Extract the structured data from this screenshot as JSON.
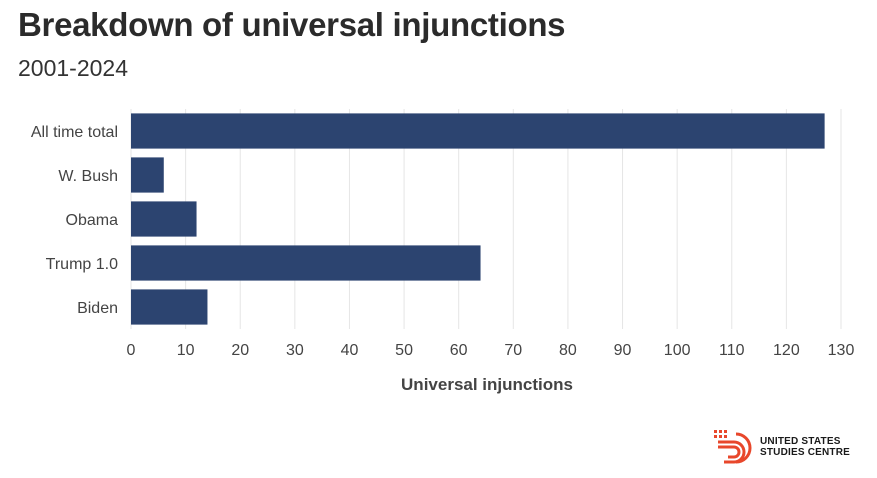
{
  "chart_data": {
    "type": "bar",
    "orientation": "horizontal",
    "title": "Breakdown of universal injunctions",
    "subtitle": "2001-2024",
    "categories": [
      "All time total",
      "W. Bush",
      "Obama",
      "Trump 1.0",
      "Biden"
    ],
    "values": [
      127,
      6,
      12,
      64,
      14
    ],
    "xlabel": "Universal injunctions",
    "ylabel": "",
    "xlim": [
      0,
      130
    ],
    "xticks": [
      0,
      10,
      20,
      30,
      40,
      50,
      60,
      70,
      80,
      90,
      100,
      110,
      120,
      130
    ],
    "grid": true,
    "bar_color": "#2c4470"
  },
  "logo": {
    "line1": "UNITED STATES",
    "line2": "STUDIES CENTRE",
    "accent_color": "#e8472b"
  }
}
